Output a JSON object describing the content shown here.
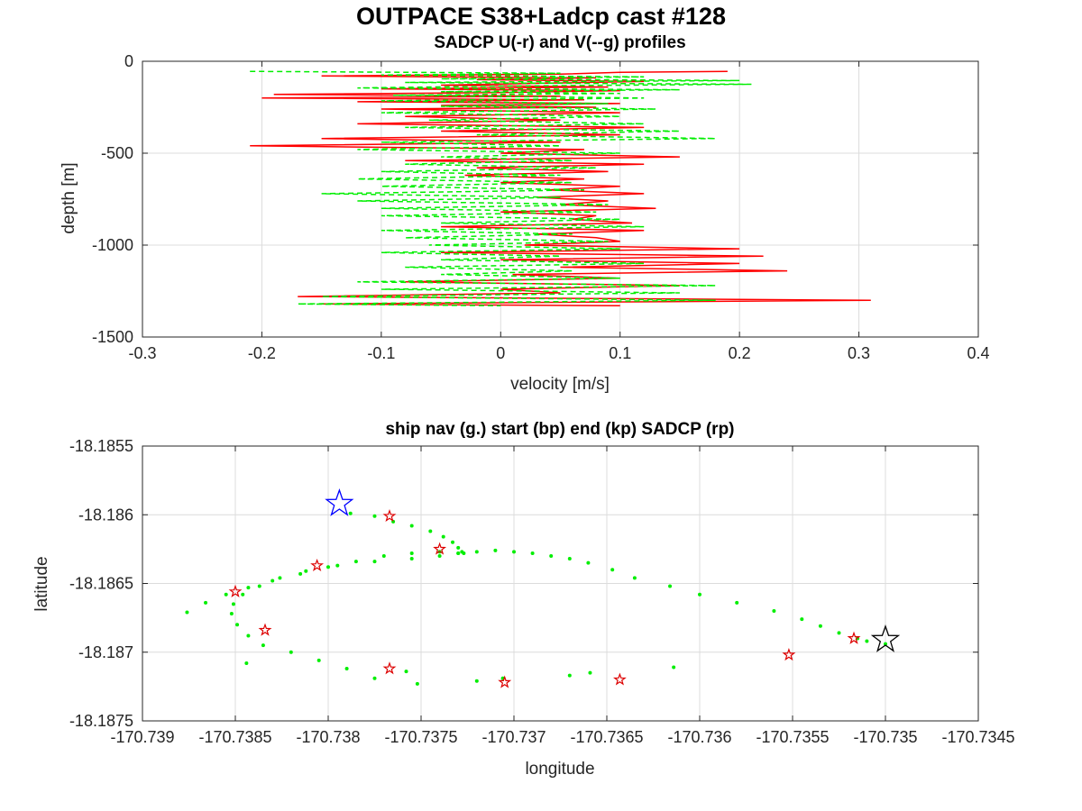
{
  "figure": {
    "title": "OUTPACE S38+Ladcp cast #128"
  },
  "chart_data": [
    {
      "type": "line",
      "title": "SADCP U(-r) and V(--g) profiles",
      "xlabel": "velocity [m/s]",
      "ylabel": "depth [m]",
      "xlim": [
        -0.3,
        0.4
      ],
      "ylim": [
        -1500,
        0
      ],
      "xticks": [
        -0.3,
        -0.2,
        -0.1,
        0,
        0.1,
        0.2,
        0.3,
        0.4
      ],
      "xtick_labels": [
        "-0.3",
        "-0.2",
        "-0.1",
        "0",
        "0.1",
        "0.2",
        "0.3",
        "0.4"
      ],
      "yticks": [
        0,
        -500,
        -1000,
        -1500
      ],
      "ytick_labels": [
        "0",
        "-500",
        "-1000",
        "-1500"
      ],
      "grid": true,
      "series": [
        {
          "color": "#ff0000",
          "line_style": "solid",
          "depth": [
            -55,
            -60,
            -70,
            -80,
            -90,
            -100,
            -110,
            -120,
            -130,
            -140,
            -150,
            -160,
            -170,
            -180,
            -190,
            -200,
            -210,
            -220,
            -230,
            -240,
            -250,
            -260,
            -280,
            -300,
            -320,
            -340,
            -360,
            -380,
            -400,
            -420,
            -440,
            -460,
            -480,
            -500,
            -520,
            -540,
            -560,
            -580,
            -600,
            -620,
            -640,
            -660,
            -680,
            -700,
            -720,
            -740,
            -760,
            -780,
            -800,
            -820,
            -840,
            -860,
            -880,
            -900,
            -920,
            -940,
            -960,
            -980,
            -1000,
            -1020,
            -1040,
            -1060,
            -1080,
            -1100,
            -1120,
            -1140,
            -1160,
            -1180,
            -1200,
            -1220,
            -1240,
            -1260,
            -1280,
            -1300,
            -1320,
            -1330
          ],
          "values": [
            0.19,
            0.1,
            0.05,
            -0.15,
            0.08,
            -0.02,
            0.12,
            0.03,
            -0.05,
            0.09,
            -0.1,
            0.1,
            0.0,
            -0.19,
            0.05,
            -0.2,
            0.07,
            -0.12,
            0.1,
            -0.05,
            0.08,
            -0.1,
            0.1,
            -0.08,
            0.05,
            -0.12,
            0.12,
            -0.05,
            0.1,
            -0.15,
            0.05,
            -0.21,
            0.07,
            0.0,
            0.15,
            -0.08,
            0.12,
            -0.02,
            0.09,
            -0.03,
            0.07,
            0.0,
            0.1,
            0.04,
            0.12,
            0.03,
            0.09,
            0.05,
            0.13,
            0.0,
            0.08,
            0.06,
            0.11,
            -0.05,
            0.12,
            0.03,
            0.08,
            0.1,
            0.02,
            0.2,
            -0.05,
            0.22,
            0.0,
            0.2,
            0.05,
            0.24,
            0.01,
            0.1,
            -0.08,
            0.15,
            0.0,
            0.05,
            -0.17,
            0.31,
            -0.15,
            0.1
          ]
        },
        {
          "color": "#00ee00",
          "line_style": "dashed",
          "depth": [
            -55,
            -65,
            -75,
            -85,
            -95,
            -105,
            -115,
            -125,
            -135,
            -145,
            -155,
            -165,
            -175,
            -185,
            -200,
            -215,
            -230,
            -245,
            -260,
            -280,
            -300,
            -320,
            -340,
            -360,
            -380,
            -400,
            -420,
            -440,
            -460,
            -480,
            -500,
            -520,
            -540,
            -560,
            -580,
            -600,
            -620,
            -640,
            -660,
            -680,
            -700,
            -720,
            -740,
            -760,
            -780,
            -800,
            -820,
            -840,
            -860,
            -880,
            -900,
            -920,
            -940,
            -960,
            -980,
            -1000,
            -1020,
            -1040,
            -1060,
            -1080,
            -1100,
            -1120,
            -1140,
            -1160,
            -1180,
            -1200,
            -1220,
            -1240,
            -1260,
            -1280,
            -1300,
            -1320,
            -1330
          ],
          "values": [
            -0.21,
            0.05,
            -0.1,
            0.12,
            -0.05,
            0.2,
            -0.08,
            0.21,
            0.0,
            -0.12,
            0.15,
            -0.05,
            0.1,
            -0.09,
            0.12,
            -0.1,
            0.09,
            -0.05,
            0.13,
            -0.1,
            0.1,
            -0.06,
            0.12,
            -0.08,
            0.15,
            -0.02,
            0.18,
            -0.1,
            0.05,
            -0.12,
            0.1,
            -0.05,
            0.06,
            -0.08,
            0.08,
            -0.1,
            0.05,
            -0.12,
            0.06,
            -0.1,
            0.07,
            -0.15,
            0.05,
            -0.12,
            0.09,
            -0.1,
            0.08,
            -0.1,
            0.1,
            -0.05,
            0.12,
            -0.1,
            0.06,
            -0.08,
            0.09,
            -0.06,
            0.1,
            -0.1,
            0.05,
            -0.05,
            0.12,
            -0.08,
            0.06,
            -0.05,
            0.1,
            -0.12,
            0.18,
            -0.1,
            0.15,
            -0.15,
            0.18,
            -0.17,
            0.0
          ]
        }
      ]
    },
    {
      "type": "scatter",
      "title": "ship nav (g.) start (bp) end (kp) SADCP (rp)",
      "xlabel": "longitude",
      "ylabel": "latitude",
      "xlim": [
        -170.739,
        -170.7345
      ],
      "ylim": [
        -18.1875,
        -18.1855
      ],
      "xticks": [
        -170.739,
        -170.7385,
        -170.738,
        -170.7375,
        -170.737,
        -170.7365,
        -170.736,
        -170.7355,
        -170.735,
        -170.7345
      ],
      "xtick_labels": [
        "-170.739",
        "-170.7385",
        "-170.738",
        "-170.7375",
        "-170.737",
        "-170.7365",
        "-170.736",
        "-170.7355",
        "-170.735",
        "-170.7345"
      ],
      "yticks": [
        -18.1855,
        -18.186,
        -18.1865,
        -18.187,
        -18.1875
      ],
      "ytick_labels": [
        "-18.1855",
        "-18.186",
        "-18.1865",
        "-18.187",
        "-18.1875"
      ],
      "grid": true,
      "ship_nav": {
        "color": "#00ee00",
        "lon": [
          -170.73788,
          -170.73775,
          -170.73765,
          -170.73755,
          -170.73745,
          -170.73738,
          -170.73733,
          -170.7373,
          -170.73728,
          -170.73727,
          -170.7373,
          -170.7374,
          -170.73755,
          -170.7377,
          -170.73785,
          -170.738,
          -170.73815,
          -170.7383,
          -170.73843,
          -170.73855,
          -170.73866,
          -170.73876,
          -170.73844,
          -170.73758,
          -170.73659,
          -170.73614,
          -170.7367,
          -170.73706,
          -170.7372,
          -170.73752,
          -170.73775,
          -170.7379,
          -170.73805,
          -170.7382,
          -170.73835,
          -170.73843,
          -170.73849,
          -170.73852,
          -170.73851,
          -170.73846,
          -170.73837,
          -170.73826,
          -170.73812,
          -170.73795,
          -170.73775,
          -170.73755,
          -170.7374,
          -170.7373,
          -170.7372,
          -170.7371,
          -170.737,
          -170.7369,
          -170.7368,
          -170.7367,
          -170.7366,
          -170.73647,
          -170.73635,
          -170.73616,
          -170.736,
          -170.7358,
          -170.7356,
          -170.73545,
          -170.73535,
          -170.73525,
          -170.73515,
          -170.7351,
          -170.735
        ],
        "lat": [
          -18.18599,
          -18.18601,
          -18.18605,
          -18.18608,
          -18.18612,
          -18.18616,
          -18.1862,
          -18.18624,
          -18.18627,
          -18.18628,
          -18.18628,
          -18.18627,
          -18.18628,
          -18.1863,
          -18.18634,
          -18.18638,
          -18.18643,
          -18.18648,
          -18.18653,
          -18.18658,
          -18.18664,
          -18.18671,
          -18.18708,
          -18.18714,
          -18.18715,
          -18.18711,
          -18.18717,
          -18.18719,
          -18.18721,
          -18.18723,
          -18.18719,
          -18.18712,
          -18.18706,
          -18.187,
          -18.18695,
          -18.18688,
          -18.1868,
          -18.18672,
          -18.18665,
          -18.18658,
          -18.18652,
          -18.18646,
          -18.18641,
          -18.18637,
          -18.18634,
          -18.18632,
          -18.1863,
          -18.18628,
          -18.18627,
          -18.18626,
          -18.18627,
          -18.18628,
          -18.1863,
          -18.18632,
          -18.18635,
          -18.1864,
          -18.18646,
          -18.18652,
          -18.18658,
          -18.18664,
          -18.1867,
          -18.18676,
          -18.18681,
          -18.18686,
          -18.1869,
          -18.18692,
          -18.18694
        ]
      },
      "start": {
        "color": "#0000ff",
        "lon": -170.73794,
        "lat": -18.18592
      },
      "end": {
        "color": "#000000",
        "lon": -170.735,
        "lat": -18.18691
      },
      "sadcp": {
        "color": "#dd0000",
        "lon": [
          -170.73767,
          -170.7374,
          -170.73806,
          -170.7385,
          -170.73834,
          -170.73767,
          -170.73705,
          -170.73643,
          -170.73552,
          -170.73517
        ],
        "lat": [
          -18.18601,
          -18.18625,
          -18.18637,
          -18.18656,
          -18.18684,
          -18.18712,
          -18.18722,
          -18.1872,
          -18.18702,
          -18.1869
        ]
      }
    }
  ]
}
